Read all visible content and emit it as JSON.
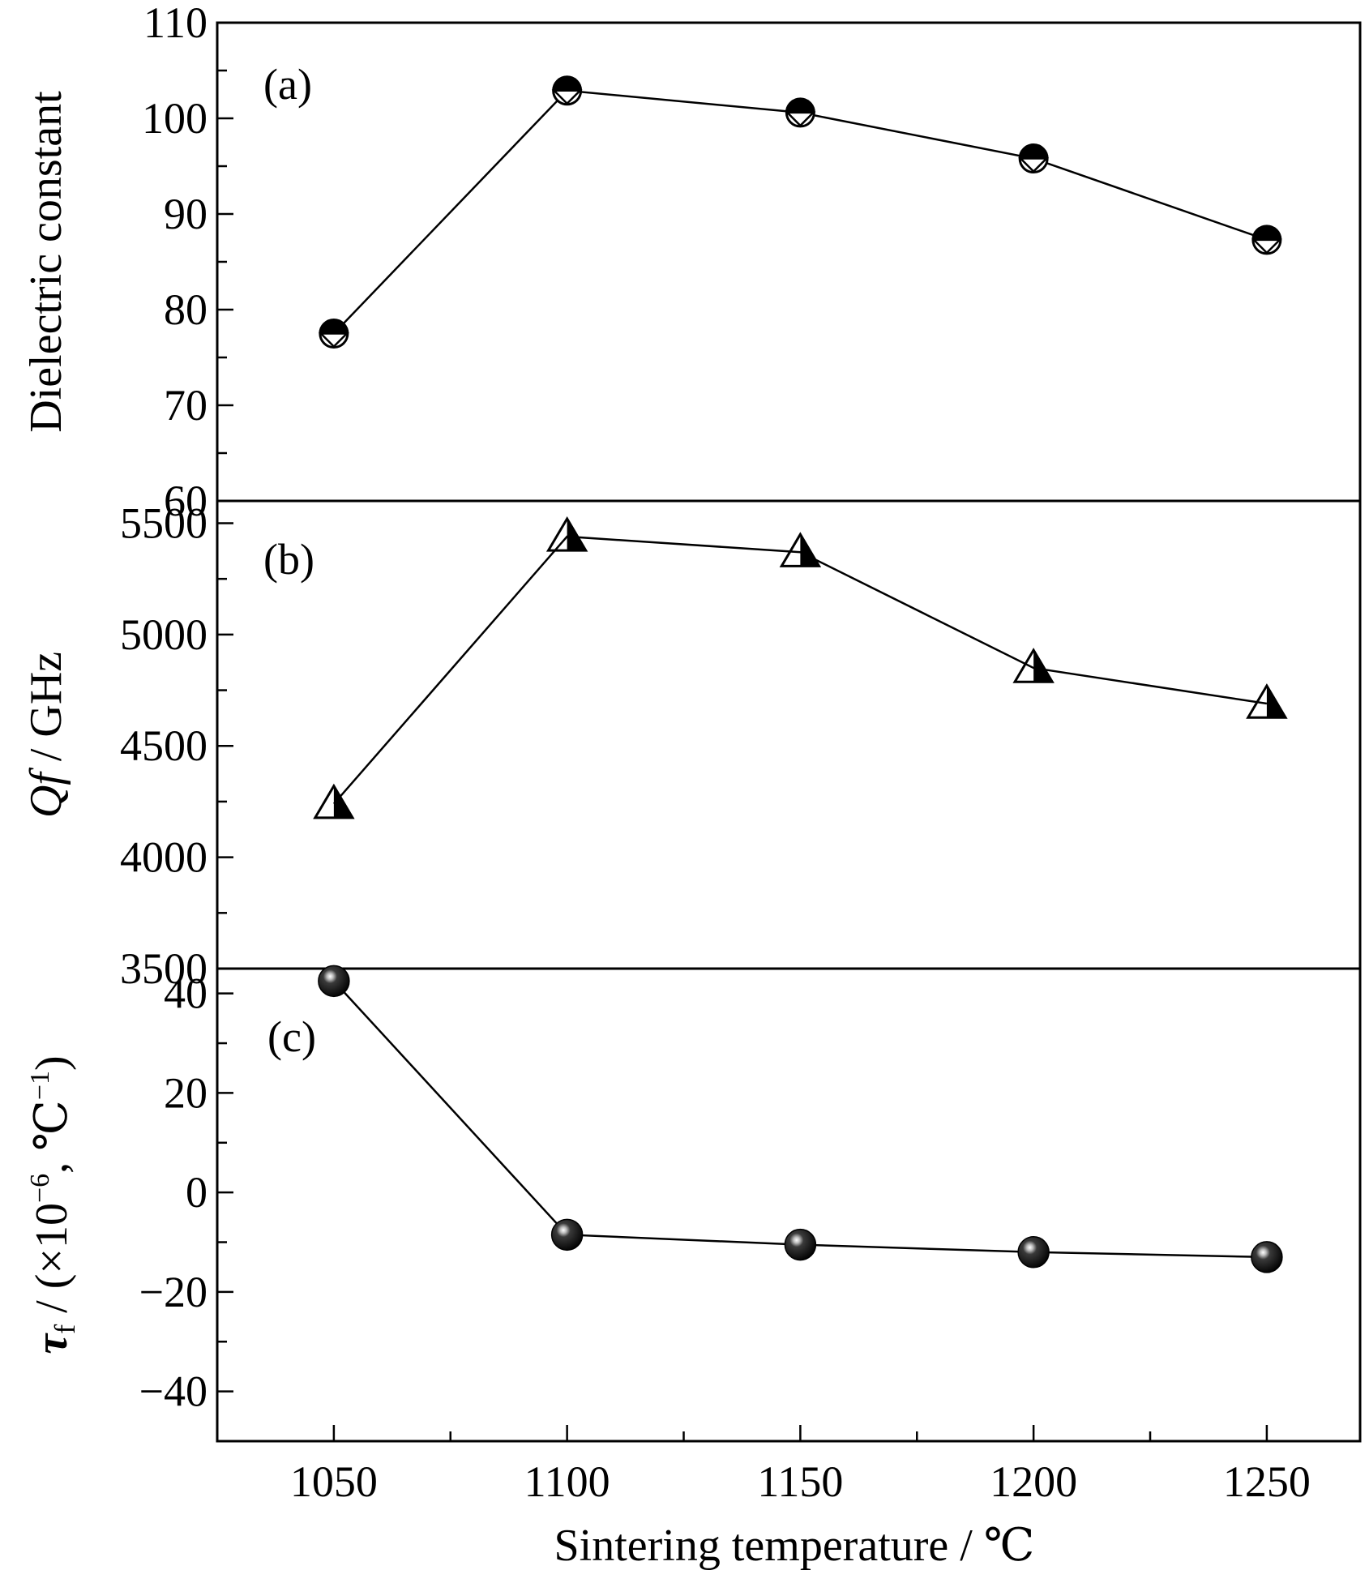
{
  "chart_data": [
    {
      "type": "line",
      "panel_label": "(a)",
      "ylabel": "Dielectric constant",
      "ylim": [
        60,
        110
      ],
      "yticks": [
        60,
        70,
        80,
        90,
        100,
        110
      ],
      "y_minor_step": 5,
      "marker": "half-filled-circle",
      "x": [
        1050,
        1100,
        1150,
        1200,
        1250
      ],
      "values": [
        77.5,
        102.9,
        100.6,
        95.8,
        87.3
      ]
    },
    {
      "type": "line",
      "panel_label": "(b)",
      "ylabel_italic": "Qf",
      "ylabel_rest": " / GHz",
      "ylim": [
        3500,
        5600
      ],
      "yticks": [
        3500,
        4000,
        4500,
        5000,
        5500
      ],
      "y_minor_step": 250,
      "marker": "half-filled-triangle",
      "x": [
        1050,
        1100,
        1150,
        1200,
        1250
      ],
      "values": [
        4240,
        5440,
        5370,
        4850,
        4690
      ]
    },
    {
      "type": "line",
      "panel_label": "(c)",
      "ylabel_tau": "τ",
      "ylabel_sub": "f",
      "ylabel_mid": " / (×10",
      "ylabel_sup1": "−6",
      "ylabel_mid2": ", ℃",
      "ylabel_sup2": "−1",
      "ylabel_end": ")",
      "ylim": [
        -50,
        45
      ],
      "yticks": [
        -40,
        -20,
        0,
        20,
        40
      ],
      "y_minor_step": 10,
      "marker": "shaded-sphere",
      "x": [
        1050,
        1100,
        1150,
        1200,
        1250
      ],
      "values": [
        42.5,
        -8.5,
        -10.5,
        -12.0,
        -13.0
      ]
    }
  ],
  "x_axis": {
    "label": "Sintering temperature / ℃",
    "xlim": [
      1025,
      1270
    ],
    "ticks": [
      1050,
      1100,
      1150,
      1200,
      1250
    ],
    "minor_step": 25
  }
}
